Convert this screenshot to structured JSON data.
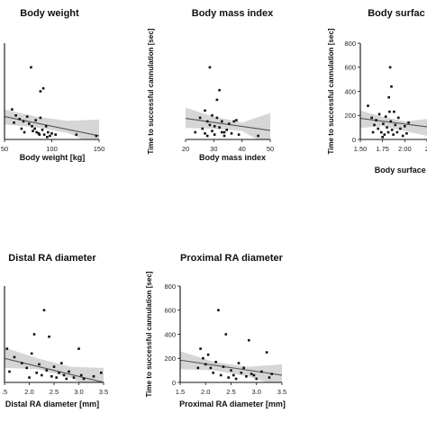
{
  "chart_data": [
    {
      "type": "scatter",
      "title": "Body weight",
      "xlabel": "Body weight [kg]",
      "ylabel": "",
      "xlim": [
        50,
        150
      ],
      "xticks": [
        "50",
        "100",
        "150"
      ],
      "ylim": [
        0,
        800
      ],
      "yticks": [],
      "regression": {
        "y_at_xmin": 190,
        "y_at_xmax": 30,
        "ci_upper": [
          250,
          190,
          155,
          165
        ],
        "ci_lower": [
          125,
          100,
          55,
          -60
        ]
      },
      "points": [
        {
          "x": 78,
          "y": 600
        },
        {
          "x": 91,
          "y": 425
        },
        {
          "x": 88,
          "y": 400
        },
        {
          "x": 58,
          "y": 250
        },
        {
          "x": 62,
          "y": 200
        },
        {
          "x": 66,
          "y": 170
        },
        {
          "x": 70,
          "y": 150
        },
        {
          "x": 74,
          "y": 190
        },
        {
          "x": 76,
          "y": 130
        },
        {
          "x": 79,
          "y": 110
        },
        {
          "x": 80,
          "y": 70
        },
        {
          "x": 82,
          "y": 90
        },
        {
          "x": 84,
          "y": 60
        },
        {
          "x": 86,
          "y": 50
        },
        {
          "x": 88,
          "y": 180
        },
        {
          "x": 90,
          "y": 80
        },
        {
          "x": 92,
          "y": 40
        },
        {
          "x": 94,
          "y": 110
        },
        {
          "x": 96,
          "y": 60
        },
        {
          "x": 98,
          "y": 30
        },
        {
          "x": 100,
          "y": 50
        },
        {
          "x": 71,
          "y": 60
        },
        {
          "x": 68,
          "y": 90
        },
        {
          "x": 83,
          "y": 160
        },
        {
          "x": 87,
          "y": 40
        },
        {
          "x": 104,
          "y": 40
        },
        {
          "x": 126,
          "y": 40
        },
        {
          "x": 147,
          "y": 30
        },
        {
          "x": 60,
          "y": 140
        },
        {
          "x": 95,
          "y": 20
        }
      ]
    },
    {
      "type": "scatter",
      "title": "Body mass index",
      "xlabel": "Body mass index",
      "ylabel": "Time to successful cannulation [sec]",
      "xlim": [
        15,
        50
      ],
      "xticks": [
        "20",
        "30",
        "40",
        "50"
      ],
      "ylim": [
        0,
        800
      ],
      "yticks": [],
      "regression": {
        "y_at_xmin": 175,
        "y_at_xmax": 75,
        "ci_upper": [
          265,
          190,
          140,
          220
        ],
        "ci_lower": [
          95,
          90,
          70,
          -60
        ]
      },
      "points": [
        {
          "x": 25,
          "y": 600
        },
        {
          "x": 29,
          "y": 410
        },
        {
          "x": 28,
          "y": 330
        },
        {
          "x": 19,
          "y": 60
        },
        {
          "x": 21,
          "y": 180
        },
        {
          "x": 22,
          "y": 90
        },
        {
          "x": 23,
          "y": 240
        },
        {
          "x": 24,
          "y": 150
        },
        {
          "x": 25,
          "y": 120
        },
        {
          "x": 26,
          "y": 70
        },
        {
          "x": 27,
          "y": 40
        },
        {
          "x": 28,
          "y": 180
        },
        {
          "x": 29,
          "y": 100
        },
        {
          "x": 30,
          "y": 60
        },
        {
          "x": 31,
          "y": 30
        },
        {
          "x": 32,
          "y": 80
        },
        {
          "x": 33,
          "y": 130
        },
        {
          "x": 34,
          "y": 50
        },
        {
          "x": 36,
          "y": 160
        },
        {
          "x": 37,
          "y": 40
        },
        {
          "x": 24,
          "y": 30
        },
        {
          "x": 26,
          "y": 200
        },
        {
          "x": 30,
          "y": 150
        },
        {
          "x": 27,
          "y": 110
        },
        {
          "x": 23,
          "y": 50
        },
        {
          "x": 45,
          "y": 30
        },
        {
          "x": 35,
          "y": 150
        },
        {
          "x": 31,
          "y": 60
        }
      ]
    },
    {
      "type": "scatter",
      "title": "Body surfac",
      "xlabel": "Body surface a",
      "ylabel": "Time to successful cannulation [sec]",
      "xlim": [
        1.5,
        2.55
      ],
      "xticks": [
        "1.50",
        "1.75",
        "2.00",
        "2"
      ],
      "ylim": [
        0,
        800
      ],
      "yticks": [
        "0",
        "200",
        "400",
        "600",
        "800"
      ],
      "regression": {
        "y_at_xmin": 175,
        "y_at_xmax": 105,
        "ci_upper": [
          240,
          190,
          150,
          170
        ],
        "ci_lower": [
          95,
          110,
          70,
          30
        ]
      },
      "points": [
        {
          "x": 1.97,
          "y": 600
        },
        {
          "x": 1.99,
          "y": 440
        },
        {
          "x": 1.95,
          "y": 350
        },
        {
          "x": 1.62,
          "y": 280
        },
        {
          "x": 1.68,
          "y": 180
        },
        {
          "x": 1.72,
          "y": 120
        },
        {
          "x": 1.75,
          "y": 160
        },
        {
          "x": 1.78,
          "y": 90
        },
        {
          "x": 1.8,
          "y": 210
        },
        {
          "x": 1.83,
          "y": 60
        },
        {
          "x": 1.86,
          "y": 130
        },
        {
          "x": 1.88,
          "y": 40
        },
        {
          "x": 1.9,
          "y": 190
        },
        {
          "x": 1.92,
          "y": 100
        },
        {
          "x": 1.94,
          "y": 60
        },
        {
          "x": 1.96,
          "y": 230
        },
        {
          "x": 1.98,
          "y": 150
        },
        {
          "x": 2.0,
          "y": 80
        },
        {
          "x": 2.02,
          "y": 40
        },
        {
          "x": 2.05,
          "y": 120
        },
        {
          "x": 2.08,
          "y": 60
        },
        {
          "x": 2.1,
          "y": 180
        },
        {
          "x": 2.13,
          "y": 90
        },
        {
          "x": 2.17,
          "y": 30
        },
        {
          "x": 2.2,
          "y": 110
        },
        {
          "x": 2.23,
          "y": 50
        },
        {
          "x": 2.26,
          "y": 140
        },
        {
          "x": 1.7,
          "y": 60
        },
        {
          "x": 1.85,
          "y": 20
        },
        {
          "x": 2.03,
          "y": 230
        }
      ]
    },
    {
      "type": "scatter",
      "title": "Distal RA diameter",
      "xlabel": "Distal RA diameter [mm]",
      "ylabel": "",
      "xlim": [
        1.5,
        3.5
      ],
      "xticks": [
        ".5",
        "2.0",
        "2.5",
        "3.0",
        "3.5"
      ],
      "ylim": [
        0,
        800
      ],
      "yticks": [],
      "regression": {
        "y_at_xmin": 200,
        "y_at_xmax": 0,
        "ci_upper": [
          290,
          200,
          130,
          120
        ],
        "ci_lower": [
          120,
          110,
          40,
          -100
        ]
      },
      "points": [
        {
          "x": 2.3,
          "y": 600
        },
        {
          "x": 2.1,
          "y": 400
        },
        {
          "x": 2.4,
          "y": 380
        },
        {
          "x": 1.55,
          "y": 280
        },
        {
          "x": 1.7,
          "y": 210
        },
        {
          "x": 1.85,
          "y": 160
        },
        {
          "x": 1.95,
          "y": 120
        },
        {
          "x": 2.05,
          "y": 240
        },
        {
          "x": 2.15,
          "y": 80
        },
        {
          "x": 2.2,
          "y": 150
        },
        {
          "x": 2.25,
          "y": 60
        },
        {
          "x": 2.35,
          "y": 100
        },
        {
          "x": 2.45,
          "y": 50
        },
        {
          "x": 2.5,
          "y": 130
        },
        {
          "x": 2.55,
          "y": 40
        },
        {
          "x": 2.6,
          "y": 80
        },
        {
          "x": 2.7,
          "y": 60
        },
        {
          "x": 2.75,
          "y": 30
        },
        {
          "x": 2.8,
          "y": 90
        },
        {
          "x": 2.9,
          "y": 40
        },
        {
          "x": 3.0,
          "y": 280
        },
        {
          "x": 3.05,
          "y": 60
        },
        {
          "x": 3.1,
          "y": 30
        },
        {
          "x": 3.3,
          "y": 50
        },
        {
          "x": 3.45,
          "y": 80
        },
        {
          "x": 2.0,
          "y": 40
        },
        {
          "x": 2.65,
          "y": 160
        },
        {
          "x": 1.6,
          "y": 90
        }
      ]
    },
    {
      "type": "scatter",
      "title": "Proximal RA diameter",
      "xlabel": "Proximal RA diameter [mm]",
      "ylabel": "Time to successful cannulation [sec]",
      "xlim": [
        1.5,
        3.5
      ],
      "xticks": [
        "1.5",
        "2.0",
        "2.5",
        "3.0",
        "3.5"
      ],
      "ylim": [
        0,
        800
      ],
      "yticks": [
        "0",
        "200",
        "400",
        "600",
        "800"
      ],
      "regression": {
        "y_at_xmin": 185,
        "y_at_xmax": 60,
        "ci_upper": [
          260,
          170,
          130,
          150
        ],
        "ci_lower": [
          110,
          100,
          50,
          -40
        ]
      },
      "points": [
        {
          "x": 2.25,
          "y": 600
        },
        {
          "x": 2.4,
          "y": 400
        },
        {
          "x": 2.85,
          "y": 350
        },
        {
          "x": 1.9,
          "y": 280
        },
        {
          "x": 1.95,
          "y": 200
        },
        {
          "x": 2.0,
          "y": 150
        },
        {
          "x": 2.05,
          "y": 230
        },
        {
          "x": 2.1,
          "y": 120
        },
        {
          "x": 2.15,
          "y": 80
        },
        {
          "x": 2.2,
          "y": 170
        },
        {
          "x": 2.3,
          "y": 60
        },
        {
          "x": 2.35,
          "y": 130
        },
        {
          "x": 2.45,
          "y": 40
        },
        {
          "x": 2.5,
          "y": 100
        },
        {
          "x": 2.55,
          "y": 60
        },
        {
          "x": 2.6,
          "y": 30
        },
        {
          "x": 2.7,
          "y": 80
        },
        {
          "x": 2.75,
          "y": 120
        },
        {
          "x": 2.8,
          "y": 50
        },
        {
          "x": 2.9,
          "y": 70
        },
        {
          "x": 3.0,
          "y": 30
        },
        {
          "x": 3.1,
          "y": 90
        },
        {
          "x": 3.2,
          "y": 250
        },
        {
          "x": 3.25,
          "y": 40
        },
        {
          "x": 2.65,
          "y": 160
        },
        {
          "x": 1.85,
          "y": 120
        },
        {
          "x": 2.95,
          "y": 60
        },
        {
          "x": 3.3,
          "y": 70
        }
      ]
    }
  ]
}
